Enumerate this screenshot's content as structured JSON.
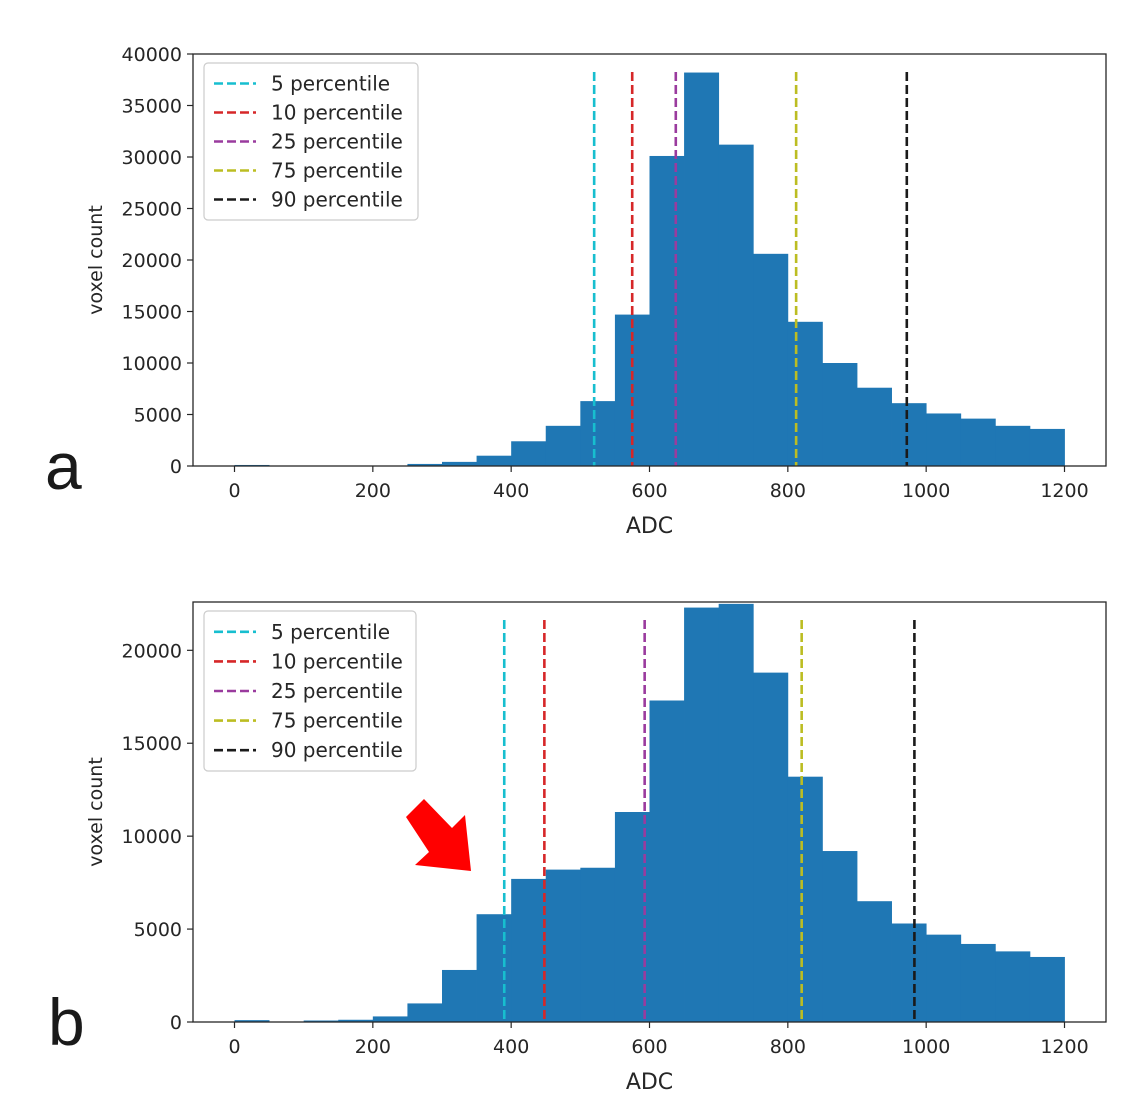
{
  "chart_data": [
    {
      "panel": "a",
      "type": "bar",
      "xlabel": "ADC",
      "ylabel": "voxel count",
      "xlim": [
        -60,
        1260
      ],
      "ylim": [
        0,
        40000
      ],
      "xticks": [
        0,
        200,
        400,
        600,
        800,
        1000,
        1200
      ],
      "yticks": [
        0,
        5000,
        10000,
        15000,
        20000,
        25000,
        30000,
        35000,
        40000
      ],
      "bin_width": 50,
      "bins": [
        {
          "x0": 0,
          "count": 100
        },
        {
          "x0": 50,
          "count": 0
        },
        {
          "x0": 100,
          "count": 0
        },
        {
          "x0": 150,
          "count": 0
        },
        {
          "x0": 200,
          "count": 0
        },
        {
          "x0": 250,
          "count": 200
        },
        {
          "x0": 300,
          "count": 400
        },
        {
          "x0": 350,
          "count": 1000
        },
        {
          "x0": 400,
          "count": 2400
        },
        {
          "x0": 450,
          "count": 3900
        },
        {
          "x0": 500,
          "count": 6300
        },
        {
          "x0": 550,
          "count": 14700
        },
        {
          "x0": 600,
          "count": 30100
        },
        {
          "x0": 650,
          "count": 38200
        },
        {
          "x0": 700,
          "count": 31200
        },
        {
          "x0": 750,
          "count": 20600
        },
        {
          "x0": 800,
          "count": 14000
        },
        {
          "x0": 850,
          "count": 10000
        },
        {
          "x0": 900,
          "count": 7600
        },
        {
          "x0": 950,
          "count": 6100
        },
        {
          "x0": 1000,
          "count": 5100
        },
        {
          "x0": 1050,
          "count": 4600
        },
        {
          "x0": 1100,
          "count": 3900
        },
        {
          "x0": 1150,
          "count": 3600
        }
      ],
      "percentiles": [
        {
          "label": "5 percentile",
          "x": 520,
          "color": "#17becf"
        },
        {
          "label": "10 percentile",
          "x": 575,
          "color": "#d62728"
        },
        {
          "label": "25 percentile",
          "x": 638,
          "color": "#9a3b9e"
        },
        {
          "label": "75 percentile",
          "x": 812,
          "color": "#bcbd22"
        },
        {
          "label": "90 percentile",
          "x": 972,
          "color": "#1a1a1a"
        }
      ]
    },
    {
      "panel": "b",
      "type": "bar",
      "xlabel": "ADC",
      "ylabel": "voxel count",
      "xlim": [
        -60,
        1260
      ],
      "ylim": [
        0,
        22600
      ],
      "xticks": [
        0,
        200,
        400,
        600,
        800,
        1000,
        1200
      ],
      "yticks": [
        0,
        5000,
        10000,
        15000,
        20000
      ],
      "bin_width": 50,
      "bins": [
        {
          "x0": 0,
          "count": 100
        },
        {
          "x0": 50,
          "count": 0
        },
        {
          "x0": 100,
          "count": 80
        },
        {
          "x0": 150,
          "count": 120
        },
        {
          "x0": 200,
          "count": 300
        },
        {
          "x0": 250,
          "count": 1000
        },
        {
          "x0": 300,
          "count": 2800
        },
        {
          "x0": 350,
          "count": 5800
        },
        {
          "x0": 400,
          "count": 7700
        },
        {
          "x0": 450,
          "count": 8200
        },
        {
          "x0": 500,
          "count": 8300
        },
        {
          "x0": 550,
          "count": 11300
        },
        {
          "x0": 600,
          "count": 17300
        },
        {
          "x0": 650,
          "count": 22300
        },
        {
          "x0": 700,
          "count": 22500
        },
        {
          "x0": 750,
          "count": 18800
        },
        {
          "x0": 800,
          "count": 13200
        },
        {
          "x0": 850,
          "count": 9200
        },
        {
          "x0": 900,
          "count": 6500
        },
        {
          "x0": 950,
          "count": 5300
        },
        {
          "x0": 1000,
          "count": 4700
        },
        {
          "x0": 1050,
          "count": 4200
        },
        {
          "x0": 1100,
          "count": 3800
        },
        {
          "x0": 1150,
          "count": 3500
        }
      ],
      "percentiles": [
        {
          "label": "5 percentile",
          "x": 390,
          "color": "#17becf"
        },
        {
          "label": "10 percentile",
          "x": 448,
          "color": "#d62728"
        },
        {
          "label": "25 percentile",
          "x": 593,
          "color": "#9a3b9e"
        },
        {
          "label": "75 percentile",
          "x": 820,
          "color": "#bcbd22"
        },
        {
          "label": "90 percentile",
          "x": 983,
          "color": "#1a1a1a"
        }
      ],
      "annotation": "arrow-pointing-to-low-ADC-shoulder"
    }
  ],
  "colors": {
    "bar": "#1f77b4",
    "arrow": "#ff0000",
    "axis": "#262626"
  }
}
